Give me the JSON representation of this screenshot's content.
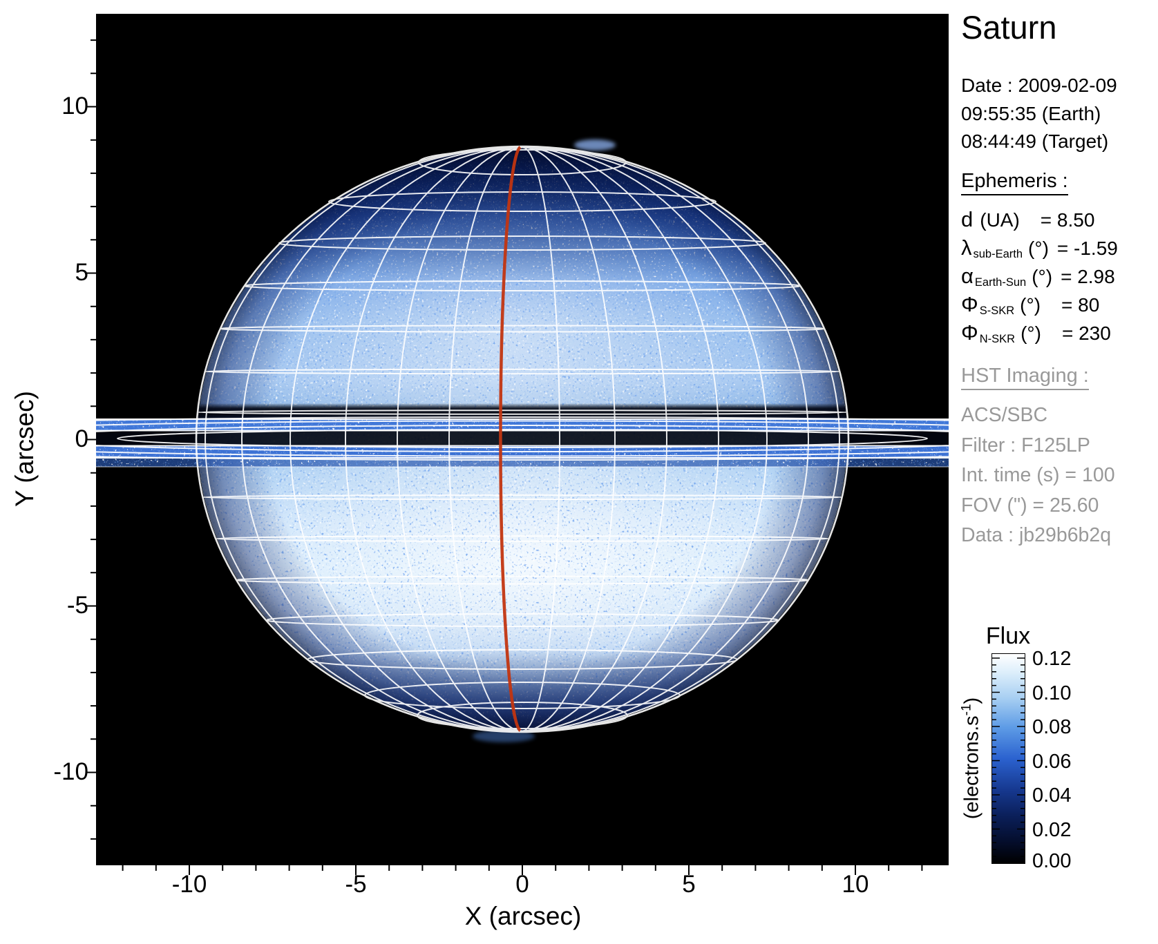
{
  "figure": {
    "title": "Saturn"
  },
  "axes": {
    "xlabel": "X (arcsec)",
    "ylabel": "Y (arcsec)",
    "x_ticks": [
      "-10",
      "-5",
      "0",
      "5",
      "10"
    ],
    "y_ticks": [
      "10",
      "5",
      "0",
      "-5",
      "-10"
    ]
  },
  "observation": {
    "date_line": "Date : 2009-02-09",
    "time_earth": "09:55:35 (Earth)",
    "time_target": "08:44:49 (Target)"
  },
  "ephemeris": {
    "heading": "Ephemeris :",
    "rows": [
      {
        "symbol": "d",
        "subscript": "",
        "unit": "(UA)",
        "value": "= 8.50"
      },
      {
        "symbol": "λ",
        "subscript": "sub-Earth",
        "unit": "(°)",
        "value": "= -1.59"
      },
      {
        "symbol": "α",
        "subscript": "Earth-Sun",
        "unit": "(°)",
        "value": "= 2.98"
      },
      {
        "symbol": "Φ",
        "subscript": "S-SKR",
        "unit": "(°)",
        "value": "= 80"
      },
      {
        "symbol": "Φ",
        "subscript": "N-SKR",
        "unit": "(°)",
        "value": "= 230"
      }
    ]
  },
  "hst": {
    "heading": "HST Imaging :",
    "lines": [
      "ACS/SBC",
      "Filter : F125LP",
      "Int. time (s) = 100",
      "FOV (\") = 25.60",
      "Data : jb29b6b2q"
    ]
  },
  "colorbar": {
    "title": "Flux",
    "unit_pre": "(electrons.s",
    "unit_sup": "-1",
    "unit_post": ")",
    "ticks": [
      "0.12",
      "0.10",
      "0.08",
      "0.06",
      "0.04",
      "0.02",
      "0.00"
    ]
  },
  "colors": {
    "sky": "#000000",
    "grid_white": "#ffffff",
    "meridian_red": "#c23510",
    "panel_gray": "#999999"
  },
  "chart_data": {
    "type": "heatmap",
    "title": "Saturn",
    "xlabel": "X (arcsec)",
    "ylabel": "Y (arcsec)",
    "xlim": [
      -12.8,
      12.8
    ],
    "ylim": [
      -12.8,
      12.8
    ],
    "x_ticks": [
      -10,
      -5,
      0,
      5,
      10
    ],
    "y_ticks": [
      10,
      5,
      0,
      -5,
      -10
    ],
    "minor_tick_step_arcsec": 1,
    "grid": false,
    "colorbar": {
      "title": "Flux",
      "unit": "electrons.s^-1",
      "min": 0.0,
      "max": 0.12,
      "ticks": [
        0.12,
        0.1,
        0.08,
        0.06,
        0.04,
        0.02,
        0.0
      ],
      "colormap": "black -> dark blue -> blue -> light blue -> white"
    },
    "image_content": {
      "description": "HST ACS/SBC far-UV image of Saturn shown in blue-white false color on a black sky",
      "planet_center_arcsec": [
        0,
        0
      ],
      "equatorial_radius_arcsec": 9.8,
      "polar_radius_arcsec": 8.8,
      "rings": "nearly edge-on rings cross the whole field at y ≈ 0 as two bright noisy bands with a dark gap and nested white ellipse outlines (inner edge ansa at x ≈ ±12.1 arcsec)",
      "ring_shadow": "dark horizontal band on the disc just north of the ring plane",
      "overlays": [
        "white planetocentric latitude-longitude wireframe grid with limb outline",
        "red meridian line from pole to pole, apex near x ≈ -0.6 arcsec",
        "faint auroral wisp on the upper limb near x ≈ +2.3 arcsec"
      ],
      "brightness": "southern hemisphere brightest (≈0.10-0.12 e/s), northern mid-latitudes bright, poles and sky dark (≈0.00-0.03 e/s)"
    },
    "annotations_right_panel": {
      "date": "2009-02-09",
      "time_earth": "09:55:35",
      "time_target": "08:44:49",
      "d_UA": 8.5,
      "lambda_subEarth_deg": -1.59,
      "alpha_EarthSun_deg": 2.98,
      "phi_S_SKR_deg": 80,
      "phi_N_SKR_deg": 230,
      "instrument": "ACS/SBC",
      "filter": "F125LP",
      "int_time_s": 100,
      "fov_arcsec": 25.6,
      "data_id": "jb29b6b2q"
    }
  }
}
